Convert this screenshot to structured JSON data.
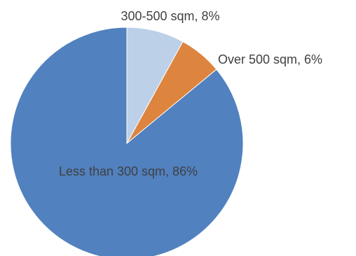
{
  "chart_data": {
    "type": "pie",
    "title": "",
    "slices": [
      {
        "label": "300-500 sqm, 8%",
        "name": "300-500 sqm",
        "value": 8,
        "color": "#bcd0e8"
      },
      {
        "label": "Over 500 sqm, 6%",
        "name": "Over 500 sqm",
        "value": 6,
        "color": "#dd843f"
      },
      {
        "label": "Less than 300 sqm, 86%",
        "name": "Less than 300 sqm",
        "value": 86,
        "color": "#5181bf"
      }
    ],
    "legend": "none",
    "start_angle": "12 o'clock",
    "direction": "clockwise"
  }
}
